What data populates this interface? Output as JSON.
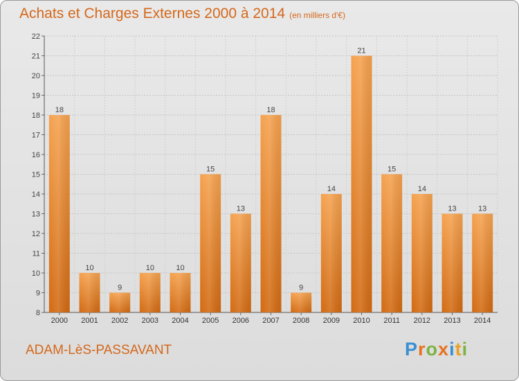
{
  "header": {
    "title": "Achats et Charges Externes 2000 à 2014",
    "unit": "(en milliers d'€)"
  },
  "footer": {
    "town": "ADAM-LèS-PASSAVANT",
    "brand": [
      {
        "ch": "P",
        "color": "#3a8fd1"
      },
      {
        "ch": "r",
        "color": "#e8711f"
      },
      {
        "ch": "o",
        "color": "#7cb342"
      },
      {
        "ch": "x",
        "color": "#e8711f"
      },
      {
        "ch": "i",
        "color": "#3a8fd1"
      },
      {
        "ch": "t",
        "color": "#e8a21f"
      },
      {
        "ch": "i",
        "color": "#7cb342"
      }
    ]
  },
  "chart_data": {
    "type": "bar",
    "title": "Achats et Charges Externes 2000 à 2014",
    "categories": [
      "2000",
      "2001",
      "2002",
      "2003",
      "2004",
      "2005",
      "2006",
      "2007",
      "2008",
      "2009",
      "2010",
      "2011",
      "2012",
      "2013",
      "2014"
    ],
    "values": [
      18,
      10,
      9,
      10,
      10,
      15,
      13,
      18,
      9,
      14,
      21,
      15,
      14,
      13,
      13
    ],
    "ylim": [
      8,
      22
    ],
    "yticks": [
      8,
      9,
      10,
      11,
      12,
      13,
      14,
      15,
      16,
      17,
      18,
      19,
      20,
      21,
      22
    ],
    "grid": true,
    "bar_color": "#f0913a"
  }
}
